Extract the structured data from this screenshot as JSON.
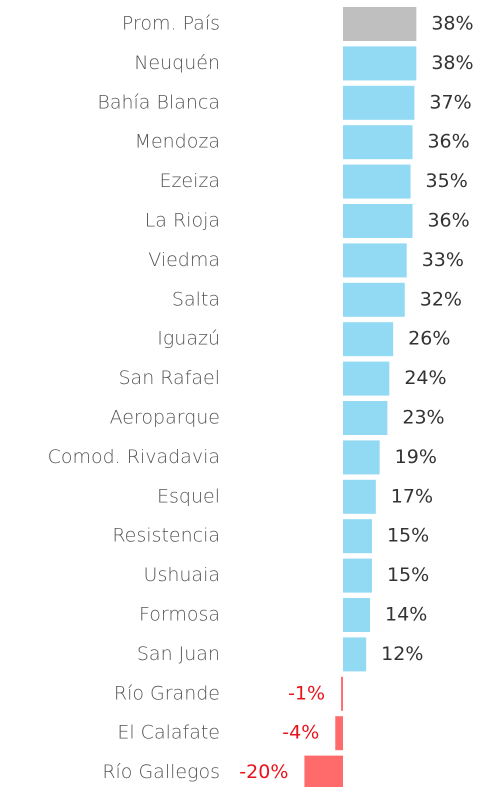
{
  "chart_data": {
    "type": "bar",
    "orientation": "horizontal",
    "categories": [
      "Prom. País",
      "Neuquén",
      "Bahía Blanca",
      "Mendoza",
      "Ezeiza",
      "La Rioja",
      "Viedma",
      "Salta",
      "Iguazú",
      "San Rafael",
      "Aeroparque",
      "Comod. Rivadavia",
      "Esquel",
      "Resistencia",
      "Ushuaia",
      "Formosa",
      "San Juan",
      "Río Grande",
      "El Calafate",
      "Río Gallegos"
    ],
    "values": [
      38,
      38,
      37,
      36,
      35,
      36,
      33,
      32,
      26,
      24,
      23,
      19,
      17,
      15,
      15,
      14,
      12,
      -1,
      -4,
      -20
    ],
    "value_labels": [
      "38%",
      "38%",
      "37%",
      "36%",
      "35%",
      "36%",
      "33%",
      "32%",
      "26%",
      "24%",
      "23%",
      "19%",
      "17%",
      "15%",
      "15%",
      "14%",
      "12%",
      "-1%",
      "-4%",
      "-20%"
    ],
    "colors": [
      "#bfbfbf",
      "#92d9f3",
      "#92d9f3",
      "#92d9f3",
      "#92d9f3",
      "#92d9f3",
      "#92d9f3",
      "#92d9f3",
      "#92d9f3",
      "#92d9f3",
      "#92d9f3",
      "#92d9f3",
      "#92d9f3",
      "#92d9f3",
      "#92d9f3",
      "#92d9f3",
      "#92d9f3",
      "#ff6b6b",
      "#ff6b6b",
      "#ff6b6b"
    ]
  }
}
